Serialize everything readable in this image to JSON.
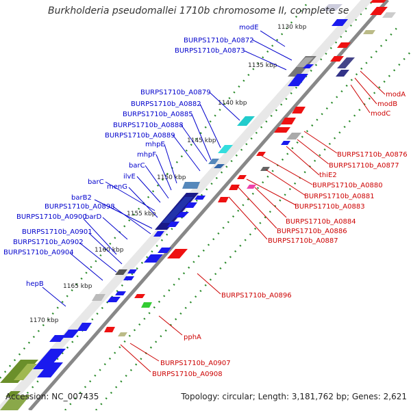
{
  "title": "Burkholderia pseudomallei 1710b chromosome II, complete sequ...",
  "footer": {
    "accession": "Accession: NC_007435",
    "summary": "Topology: circular; Length: 3,181,762 bp; Genes: 2,621"
  },
  "scale_ticks": [
    {
      "label": "1130 kbp",
      "kbp": 1130
    },
    {
      "label": "1135 kbp",
      "kbp": 1135
    },
    {
      "label": "1140 kbp",
      "kbp": 1140
    },
    {
      "label": "1145 kbp",
      "kbp": 1145
    },
    {
      "label": "1150 kbp",
      "kbp": 1150
    },
    {
      "label": "1155 kbp",
      "kbp": 1155
    },
    {
      "label": "1160 kbp",
      "kbp": 1160
    },
    {
      "label": "1165 kbp",
      "kbp": 1165
    },
    {
      "label": "1170 kbp",
      "kbp": 1170
    }
  ],
  "genes_forward": [
    {
      "label": "modE"
    },
    {
      "label": "BURPS1710b_A0872"
    },
    {
      "label": "BURPS1710b_A0873"
    },
    {
      "label": "BURPS1710b_A0879"
    },
    {
      "label": "BURPS1710b_A0882"
    },
    {
      "label": "BURPS1710b_A0885"
    },
    {
      "label": "BURPS1710b_A0888"
    },
    {
      "label": "BURPS1710b_A0889"
    },
    {
      "label": "mhpE"
    },
    {
      "label": "mhpF"
    },
    {
      "label": "barC"
    },
    {
      "label": "ilvE"
    },
    {
      "label": "barC"
    },
    {
      "label": "menG"
    },
    {
      "label": "barB2"
    },
    {
      "label": "BURPS1710b_A0898"
    },
    {
      "label": "BURPS1710b_A0900"
    },
    {
      "label": "barD"
    },
    {
      "label": "BURPS1710b_A0901"
    },
    {
      "label": "BURPS1710b_A0902"
    },
    {
      "label": "BURPS1710b_A0904"
    },
    {
      "label": "hepB"
    }
  ],
  "genes_reverse": [
    {
      "label": "modA"
    },
    {
      "label": "modB"
    },
    {
      "label": "modC"
    },
    {
      "label": "BURPS1710b_A0876"
    },
    {
      "label": "BURPS1710b_A0877"
    },
    {
      "label": "thiE2"
    },
    {
      "label": "BURPS1710b_A0880"
    },
    {
      "label": "BURPS1710b_A0881"
    },
    {
      "label": "BURPS1710b_A0883"
    },
    {
      "label": "BURPS1710b_A0884"
    },
    {
      "label": "BURPS1710b_A0886"
    },
    {
      "label": "BURPS1710b_A0887"
    },
    {
      "label": "BURPS1710b_A0896"
    },
    {
      "label": "pphA"
    },
    {
      "label": "BURPS1710b_A0907"
    },
    {
      "label": "BURPS1710b_A0908"
    }
  ],
  "colors": {
    "forward_label": "#0000cc",
    "reverse_label": "#cc0000",
    "backbone": "#888888",
    "forward_cds": "#1a1aee",
    "reverse_cds": "#ee1111",
    "tick_dash": "#2a8a2a"
  }
}
